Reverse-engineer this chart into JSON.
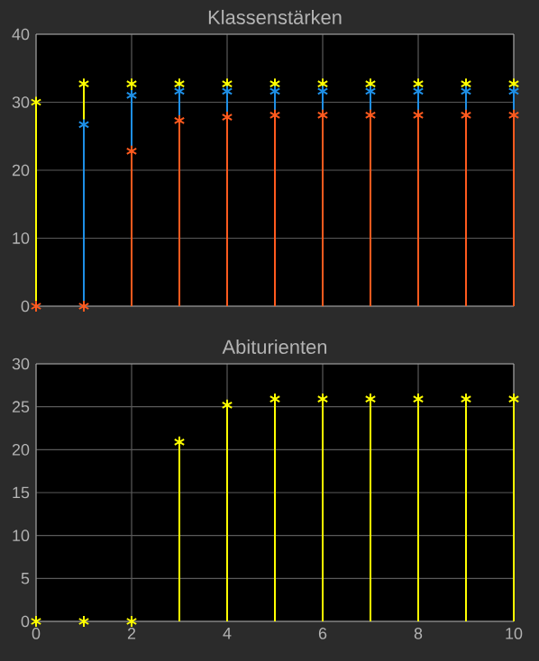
{
  "chart_data": [
    {
      "type": "lollipop",
      "title": "Klassenstärken",
      "x": [
        0,
        1,
        2,
        3,
        4,
        5,
        6,
        7,
        8,
        9,
        10
      ],
      "xlim": [
        0,
        10
      ],
      "xticks": [
        0,
        2,
        4,
        6,
        8,
        10
      ],
      "ylim": [
        0,
        40
      ],
      "yticks": [
        0,
        10,
        20,
        30,
        40
      ],
      "grid": true,
      "tick_labels": "y",
      "marker": "cross",
      "series": [
        {
          "color": "#ff5a1e",
          "values": [
            0,
            0,
            22.8,
            27.3,
            27.8,
            28.1,
            28.1,
            28.1,
            28.1,
            28.1,
            28.1
          ]
        },
        {
          "color": "#1e8fe6",
          "values": [
            null,
            26.7,
            31.0,
            31.6,
            31.6,
            31.6,
            31.6,
            31.6,
            31.6,
            31.6,
            31.6
          ]
        },
        {
          "color": "#ffff00",
          "values": [
            30,
            32.7,
            32.7,
            32.7,
            32.7,
            32.7,
            32.7,
            32.7,
            32.7,
            32.7,
            32.7
          ]
        }
      ]
    },
    {
      "type": "lollipop",
      "title": "Abiturienten",
      "x": [
        0,
        1,
        2,
        3,
        4,
        5,
        6,
        7,
        8,
        9,
        10
      ],
      "xlim": [
        0,
        10
      ],
      "xticks": [
        0,
        2,
        4,
        6,
        8,
        10
      ],
      "ylim": [
        0,
        30
      ],
      "yticks": [
        0,
        5,
        10,
        15,
        20,
        25,
        30
      ],
      "grid": true,
      "marker": "cross",
      "series": [
        {
          "color": "#ffff00",
          "values": [
            0,
            0,
            0,
            20.9,
            25.2,
            25.9,
            25.9,
            25.9,
            25.9,
            25.9,
            25.9
          ]
        }
      ]
    }
  ]
}
